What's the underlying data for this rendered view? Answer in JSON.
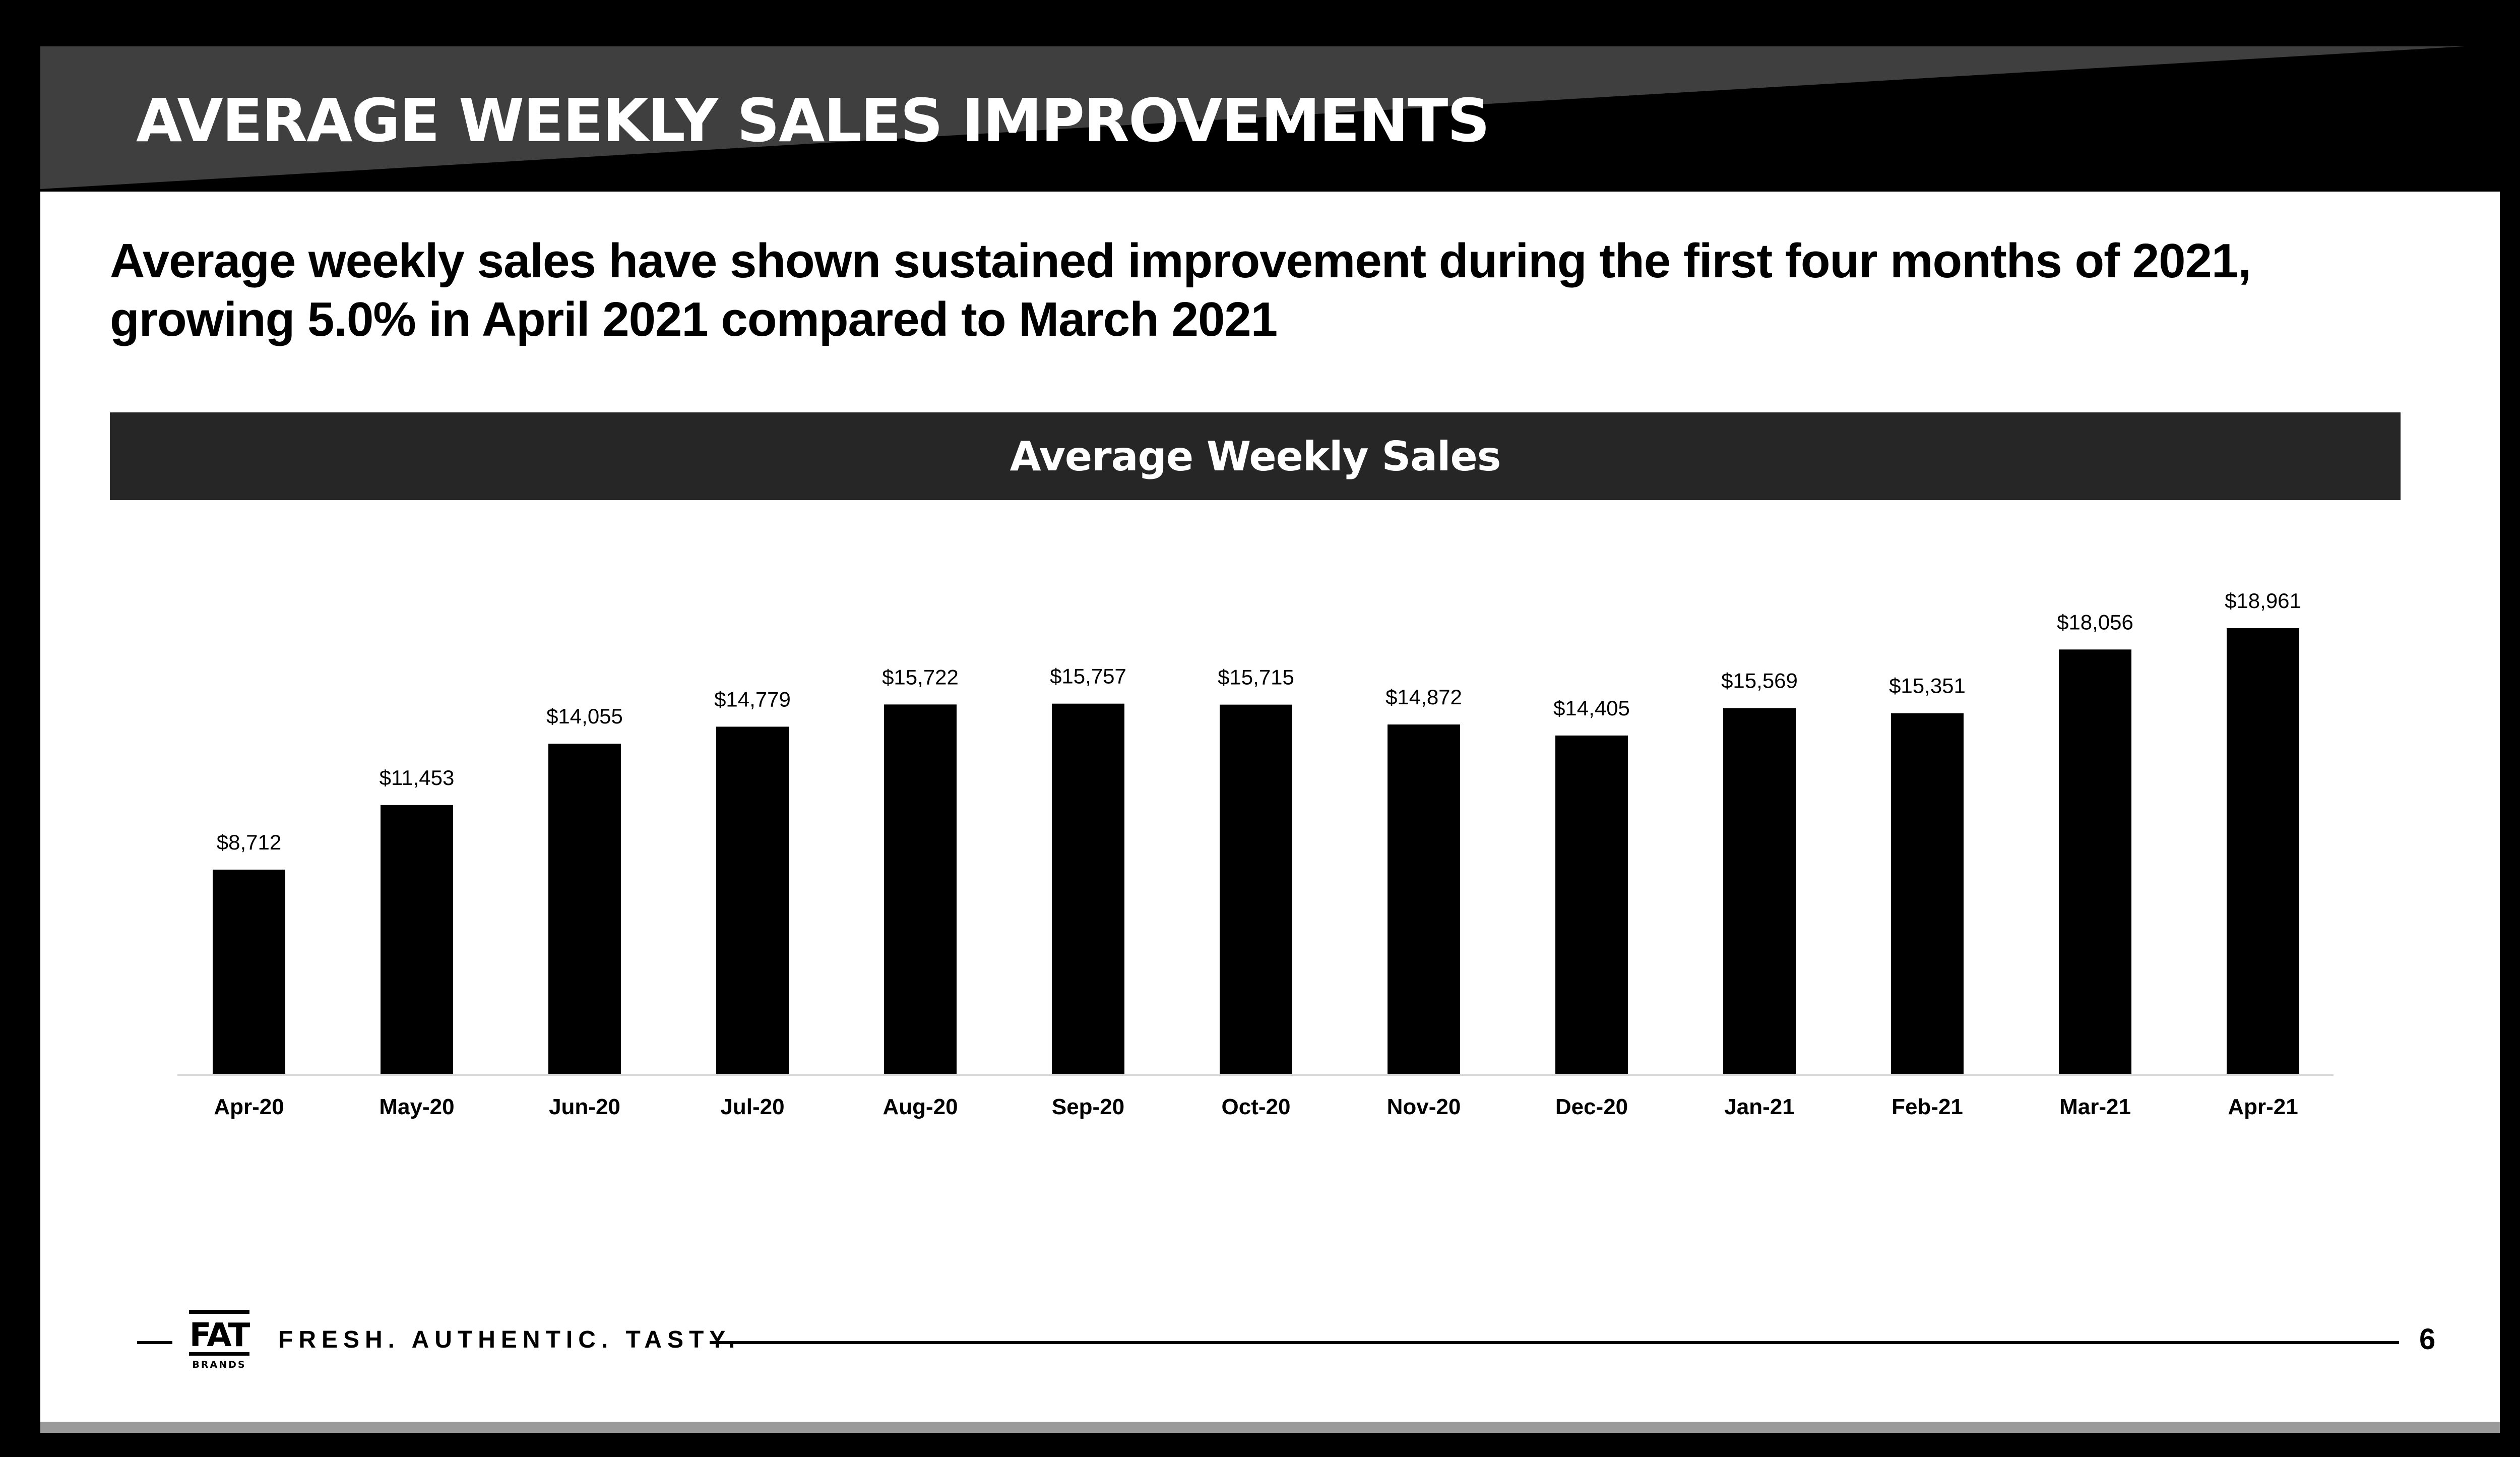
{
  "header": {
    "title": "AVERAGE WEEKLY SALES IMPROVEMENTS"
  },
  "subtitle": {
    "line1": "Average weekly sales have shown sustained improvement during the first four months of 2021,",
    "line2": "growing 5.0% in April 2021 compared to March 2021"
  },
  "footer": {
    "logo_text": "FAT",
    "logo_subtext": "BRANDS",
    "tagline": "FRESH. AUTHENTIC. TASTY.",
    "page_number": "6"
  },
  "colors": {
    "bar": "#000000",
    "band": "#262626",
    "header_dark": "#000000",
    "header_grey": "#3f3f3f",
    "axis": "#d9d9d9"
  },
  "chart_data": {
    "type": "bar",
    "title": "Average Weekly Sales",
    "categories": [
      "Apr-20",
      "May-20",
      "Jun-20",
      "Jul-20",
      "Aug-20",
      "Sep-20",
      "Oct-20",
      "Nov-20",
      "Dec-20",
      "Jan-21",
      "Feb-21",
      "Mar-21",
      "Apr-21"
    ],
    "values": [
      8712,
      11453,
      14055,
      14779,
      15722,
      15757,
      15715,
      14872,
      14405,
      15569,
      15351,
      18056,
      18961
    ],
    "data_labels": [
      "$8,712",
      "$11,453",
      "$14,055",
      "$14,779",
      "$15,722",
      "$15,757",
      "$15,715",
      "$14,872",
      "$14,405",
      "$15,569",
      "$15,351",
      "$18,056",
      "$18,961"
    ],
    "xlabel": "",
    "ylabel": "",
    "ylim": [
      0,
      18961
    ],
    "grid": false,
    "legend": "none"
  }
}
